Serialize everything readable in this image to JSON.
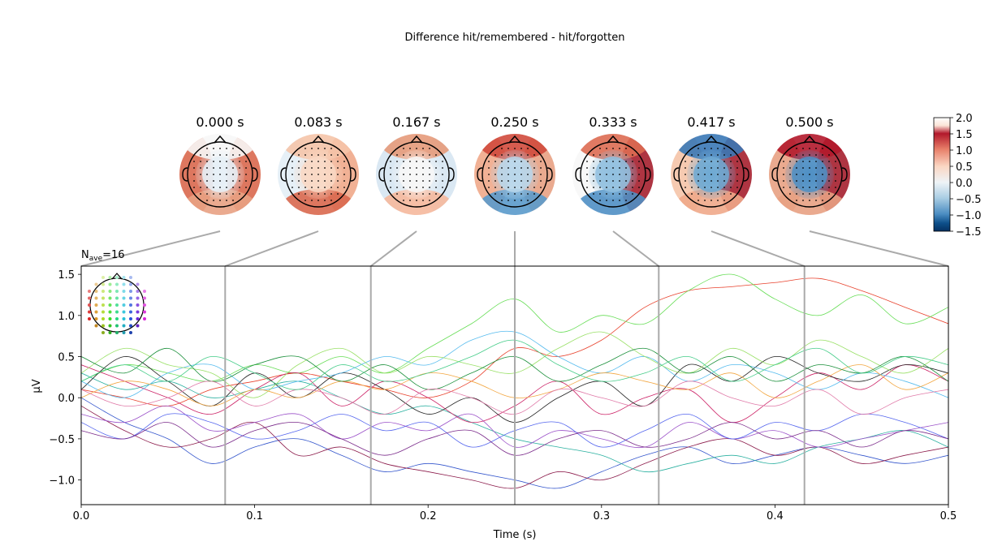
{
  "figure": {
    "suptitle": "Difference hit/remembered - hit/forgotten",
    "nave_label": "N",
    "nave_sub": "ave",
    "nave_value": "=16"
  },
  "chart_data": [
    {
      "type": "topomap-row",
      "times": [
        "0.000 s",
        "0.083 s",
        "0.167 s",
        "0.250 s",
        "0.333 s",
        "0.417 s",
        "0.500 s"
      ],
      "time_values": [
        0.0,
        0.083,
        0.167,
        0.25,
        0.333,
        0.417,
        0.5
      ],
      "colormap": "RdBu_r",
      "colorbar": {
        "ticks": [
          "2.0",
          "1.5",
          "1.0",
          "0.5",
          "0.0",
          "−0.5",
          "−1.0",
          "−1.5"
        ],
        "vmin": -1.5,
        "vmax": 2.0
      },
      "map_colors": [
        {
          "left": "#d9684e",
          "right": "#d9684e",
          "center": "#e6f0f7",
          "top": "#f7f7f7",
          "bottom": "#e8a183"
        },
        {
          "left": "#e3eef6",
          "right": "#f0a98a",
          "center": "#f9d8c4",
          "top": "#f5c4a8",
          "bottom": "#d9684e"
        },
        {
          "left": "#d6e6f2",
          "right": "#d6e6f2",
          "center": "#f7f7f7",
          "top": "#e69a7a",
          "bottom": "#f5b89c"
        },
        {
          "left": "#f0a98a",
          "right": "#e8a183",
          "center": "#b9d6ea",
          "top": "#d04a3c",
          "bottom": "#5a9acb"
        },
        {
          "left": "#f7f7f7",
          "right": "#a51f2e",
          "center": "#90c0df",
          "top": "#dd6b52",
          "bottom": "#4f8fc4"
        },
        {
          "left": "#f5c4a8",
          "right": "#a51f2e",
          "center": "#6fa9d2",
          "top": "#3a78b6",
          "bottom": "#f0a98a"
        },
        {
          "left": "#e8a183",
          "right": "#a51f2e",
          "center": "#4f8fc4",
          "top": "#b2182b",
          "bottom": "#e8a183"
        }
      ]
    },
    {
      "type": "line",
      "title": "",
      "xlabel": "Time (s)",
      "ylabel": "µV",
      "xlim": [
        0.0,
        0.5
      ],
      "ylim": [
        -1.3,
        1.6
      ],
      "xticks": [
        "0.0",
        "0.1",
        "0.2",
        "0.3",
        "0.4",
        "0.5"
      ],
      "xtick_values": [
        0.0,
        0.1,
        0.2,
        0.3,
        0.4,
        0.5
      ],
      "yticks": [
        "1.5",
        "1.0",
        "0.5",
        "0.0",
        "−0.5",
        "−1.0"
      ],
      "ytick_values": [
        1.5,
        1.0,
        0.5,
        0.0,
        -0.5,
        -1.0
      ],
      "vlines_at": [
        0.083,
        0.167,
        0.25,
        0.333,
        0.417
      ],
      "grid": false,
      "legend": "sensor-layout inset at top-left",
      "n_channels": 60,
      "x": [
        0.0,
        0.025,
        0.05,
        0.075,
        0.1,
        0.125,
        0.15,
        0.175,
        0.2,
        0.225,
        0.25,
        0.275,
        0.3,
        0.325,
        0.35,
        0.375,
        0.4,
        0.425,
        0.45,
        0.475,
        0.5
      ],
      "series": [
        {
          "color": "#e8412c",
          "values": [
            0.1,
            0.0,
            -0.1,
            0.1,
            0.2,
            0.3,
            0.2,
            0.1,
            0.0,
            0.2,
            0.6,
            0.5,
            0.7,
            1.1,
            1.3,
            1.35,
            1.4,
            1.45,
            1.3,
            1.1,
            0.9
          ]
        },
        {
          "color": "#66dd55",
          "values": [
            0.2,
            0.4,
            0.3,
            0.2,
            0.4,
            0.3,
            0.5,
            0.3,
            0.6,
            0.9,
            1.2,
            0.8,
            1.0,
            0.9,
            1.3,
            1.5,
            1.2,
            1.0,
            1.25,
            0.9,
            1.1
          ]
        },
        {
          "color": "#3355cc",
          "values": [
            0.0,
            -0.3,
            -0.5,
            -0.8,
            -0.6,
            -0.5,
            -0.7,
            -0.9,
            -0.8,
            -0.9,
            -1.0,
            -1.1,
            -0.9,
            -0.7,
            -0.6,
            -0.8,
            -0.7,
            -0.6,
            -0.7,
            -0.8,
            -0.7
          ]
        },
        {
          "color": "#8b1a4a",
          "values": [
            -0.1,
            -0.4,
            -0.6,
            -0.5,
            -0.3,
            -0.7,
            -0.6,
            -0.8,
            -0.9,
            -1.0,
            -1.1,
            -0.9,
            -1.0,
            -0.8,
            -0.6,
            -0.5,
            -0.7,
            -0.6,
            -0.8,
            -0.7,
            -0.6
          ]
        },
        {
          "color": "#2ab0a0",
          "values": [
            0.3,
            0.1,
            0.2,
            0.0,
            0.1,
            0.2,
            0.0,
            -0.2,
            -0.1,
            -0.3,
            -0.5,
            -0.6,
            -0.7,
            -0.9,
            -0.8,
            -0.7,
            -0.8,
            -0.6,
            -0.5,
            -0.4,
            -0.6
          ]
        },
        {
          "color": "#9a4fc8",
          "values": [
            -0.2,
            -0.3,
            -0.1,
            -0.4,
            -0.3,
            -0.2,
            -0.5,
            -0.3,
            -0.4,
            -0.2,
            -0.6,
            -0.4,
            -0.5,
            -0.6,
            -0.3,
            -0.5,
            -0.4,
            -0.6,
            -0.5,
            -0.4,
            -0.3
          ]
        },
        {
          "color": "#cc2266",
          "values": [
            0.4,
            0.2,
            0.0,
            -0.2,
            0.1,
            0.3,
            -0.1,
            0.2,
            0.0,
            -0.3,
            -0.1,
            0.2,
            -0.2,
            0.0,
            0.1,
            -0.3,
            0.0,
            0.3,
            0.1,
            0.4,
            0.2
          ]
        },
        {
          "color": "#222222",
          "values": [
            0.1,
            0.5,
            0.2,
            -0.1,
            0.3,
            0.0,
            0.3,
            0.1,
            -0.2,
            0.0,
            -0.3,
            0.0,
            0.2,
            -0.1,
            0.4,
            0.2,
            0.5,
            0.3,
            0.2,
            0.4,
            0.3
          ]
        },
        {
          "color": "#55bbee",
          "values": [
            0.2,
            0.0,
            0.3,
            0.4,
            0.1,
            0.2,
            0.3,
            0.5,
            0.4,
            0.7,
            0.8,
            0.5,
            0.3,
            0.5,
            0.2,
            0.4,
            0.3,
            0.1,
            0.3,
            0.2,
            0.0
          ]
        },
        {
          "color": "#99e066",
          "values": [
            0.3,
            0.6,
            0.4,
            0.3,
            0.0,
            0.4,
            0.6,
            0.3,
            0.5,
            0.4,
            0.3,
            0.6,
            0.8,
            0.5,
            0.3,
            0.6,
            0.4,
            0.7,
            0.5,
            0.3,
            0.6
          ]
        },
        {
          "color": "#f2a640",
          "values": [
            0.0,
            0.2,
            0.1,
            -0.1,
            0.1,
            0.0,
            0.2,
            0.1,
            0.3,
            0.2,
            0.0,
            0.1,
            0.3,
            0.2,
            0.1,
            0.3,
            0.0,
            0.2,
            0.4,
            0.1,
            0.3
          ]
        },
        {
          "color": "#1a8f3a",
          "values": [
            0.5,
            0.3,
            0.6,
            0.2,
            0.4,
            0.5,
            0.2,
            0.4,
            0.1,
            0.3,
            0.5,
            0.2,
            0.4,
            0.6,
            0.3,
            0.5,
            0.2,
            0.4,
            0.3,
            0.5,
            0.2
          ]
        },
        {
          "color": "#5566ee",
          "values": [
            -0.3,
            -0.5,
            -0.2,
            -0.3,
            -0.5,
            -0.4,
            -0.2,
            -0.4,
            -0.3,
            -0.6,
            -0.4,
            -0.3,
            -0.6,
            -0.4,
            -0.2,
            -0.5,
            -0.3,
            -0.4,
            -0.2,
            -0.3,
            -0.5
          ]
        },
        {
          "color": "#e07aa8",
          "values": [
            0.1,
            -0.1,
            0.0,
            0.2,
            -0.1,
            0.1,
            0.0,
            -0.2,
            0.1,
            0.0,
            -0.2,
            0.1,
            0.0,
            -0.1,
            0.2,
            0.0,
            -0.1,
            0.1,
            -0.2,
            0.0,
            0.1
          ]
        },
        {
          "color": "#44cc88",
          "values": [
            0.2,
            0.4,
            0.2,
            0.5,
            0.3,
            0.1,
            0.4,
            0.2,
            0.3,
            0.5,
            0.7,
            0.4,
            0.2,
            0.3,
            0.5,
            0.2,
            0.4,
            0.6,
            0.3,
            0.5,
            0.4
          ]
        },
        {
          "color": "#7a2a8a",
          "values": [
            -0.4,
            -0.5,
            -0.3,
            -0.6,
            -0.4,
            -0.3,
            -0.5,
            -0.7,
            -0.5,
            -0.4,
            -0.7,
            -0.5,
            -0.4,
            -0.6,
            -0.5,
            -0.3,
            -0.5,
            -0.4,
            -0.6,
            -0.4,
            -0.5
          ]
        }
      ]
    }
  ]
}
